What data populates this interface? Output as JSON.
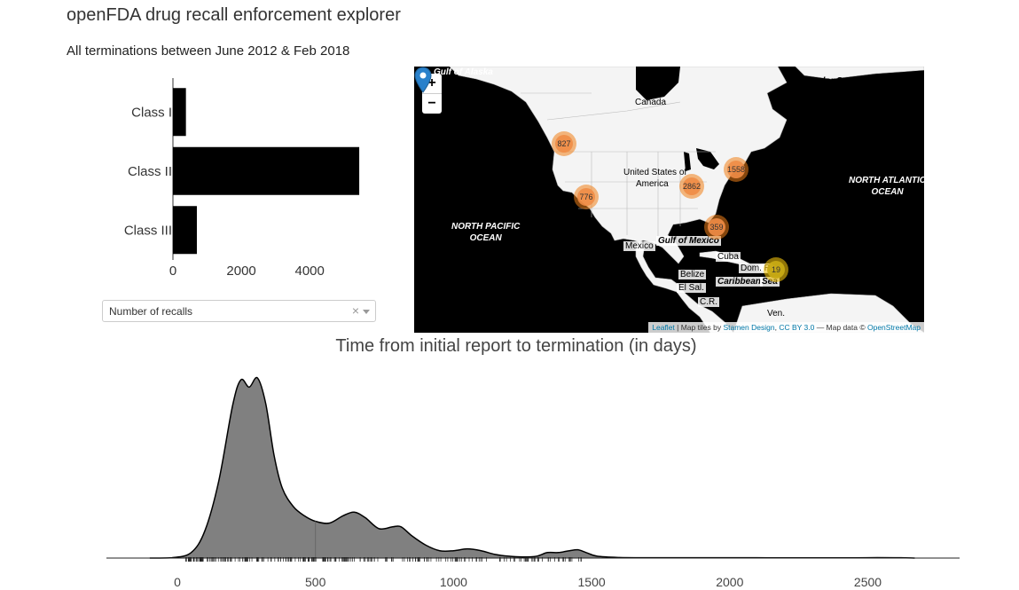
{
  "app": {
    "title": "openFDA drug recall enforcement explorer",
    "subtitle": "All terminations between June 2012 & Feb 2018"
  },
  "bar_chart": {
    "type": "bar",
    "orientation": "horizontal",
    "categories": [
      "Class I",
      "Class II",
      "Class III"
    ],
    "values": [
      380,
      5450,
      700
    ],
    "xticks": [
      "0",
      "2000",
      "4000"
    ],
    "xlim": [
      0,
      5500
    ],
    "bar_color": "#000000"
  },
  "metric_select": {
    "selected": "Number of recalls",
    "clear_glyph": "×"
  },
  "map": {
    "zoom_in": "+",
    "zoom_out": "−",
    "labels": {
      "gulf_alaska": "Gulf of Alaska",
      "labrador": "Labrador Sea",
      "canada": "Canada",
      "usa_line1": "United States of",
      "usa_line2": "America",
      "north_atlantic_1": "NORTH ATLANTIC",
      "north_atlantic_2": "OCEAN",
      "north_pacific_1": "NORTH PACIFIC",
      "north_pacific_2": "OCEAN",
      "mexico": "Mexico",
      "gulf_mexico": "Gulf of Mexico",
      "cuba": "Cuba",
      "dom_rep": "Dom. R",
      "belize": "Belize",
      "caribbean": "Caribbean",
      "sea": "Sea",
      "el_sal": "El Sal.",
      "cr": "C.R.",
      "ven": "Ven."
    },
    "clusters": [
      {
        "count": "827",
        "color": "orange"
      },
      {
        "count": "2862",
        "color": "orange"
      },
      {
        "count": "1558",
        "color": "orange"
      },
      {
        "count": "776",
        "color": "orange"
      },
      {
        "count": "359",
        "color": "orange"
      },
      {
        "count": "19",
        "color": "yellow"
      }
    ],
    "attribution": {
      "leaflet": "Leaflet",
      "sep1": " | Map tiles by ",
      "stamen": "Stamen Design",
      "sep2": ", ",
      "cc": "CC BY 3.0",
      "sep3": " — Map data © ",
      "osm": "OpenStreetMap"
    }
  },
  "chart_data": {
    "type": "area",
    "title": "Time from initial report to termination (in days)",
    "xticks": [
      0,
      500,
      1000,
      1500,
      2000,
      2500
    ],
    "xlim": [
      -100,
      2830
    ],
    "x": [
      -100,
      -20,
      50,
      100,
      150,
      200,
      230,
      260,
      290,
      320,
      350,
      380,
      420,
      460,
      500,
      550,
      600,
      640,
      680,
      730,
      780,
      810,
      850,
      900,
      950,
      1000,
      1050,
      1100,
      1150,
      1200,
      1250,
      1300,
      1340,
      1380,
      1420,
      1450,
      1480,
      1520,
      1600,
      1700,
      1800,
      1900,
      2000,
      2100,
      2200,
      2300,
      2400,
      2500,
      2600,
      2670
    ],
    "y": [
      0,
      0.002,
      0.03,
      0.15,
      0.42,
      0.83,
      0.97,
      0.93,
      0.98,
      0.84,
      0.56,
      0.38,
      0.28,
      0.23,
      0.2,
      0.19,
      0.23,
      0.25,
      0.22,
      0.16,
      0.17,
      0.17,
      0.12,
      0.07,
      0.04,
      0.04,
      0.05,
      0.04,
      0.02,
      0.01,
      0.006,
      0.01,
      0.03,
      0.03,
      0.04,
      0.045,
      0.03,
      0.01,
      0.003,
      0.002,
      0.002,
      0.002,
      0.002,
      0.002,
      0.001,
      0.001,
      0.001,
      0.002,
      0.002,
      0
    ],
    "rug_range": [
      30,
      1480
    ],
    "fill": "#808080",
    "stroke": "#000000"
  }
}
